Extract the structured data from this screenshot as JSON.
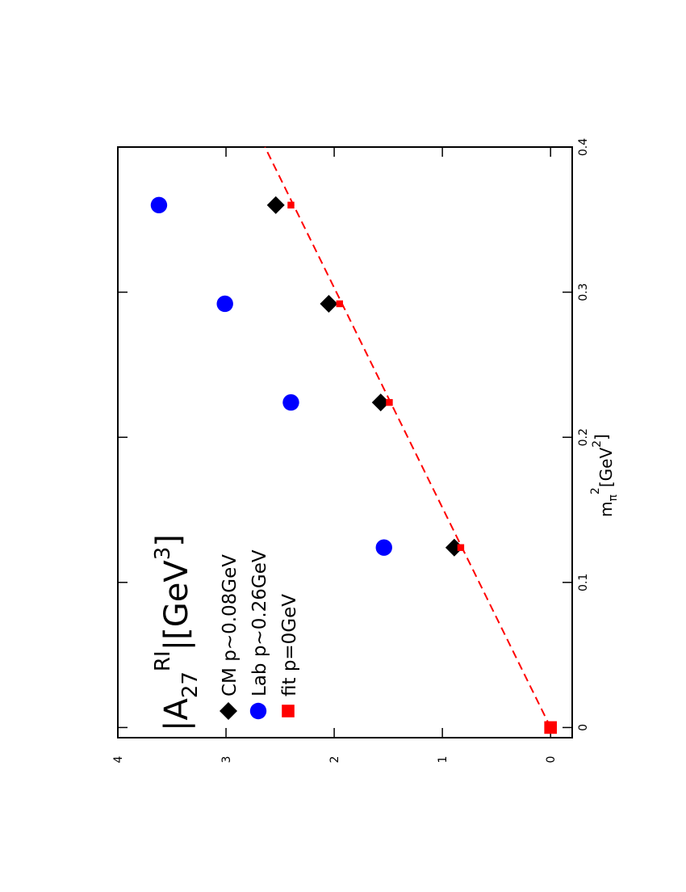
{
  "chart_data": {
    "type": "scatter",
    "title_parts": [
      "|A",
      "27",
      "RI",
      "|[GeV",
      "3",
      "]"
    ],
    "x_label_parts": [
      "m",
      "π",
      "2",
      "[GeV",
      "2",
      "]"
    ],
    "rotated": true,
    "xlim": [
      -0.007,
      0.4
    ],
    "xticks": [
      0,
      0.1,
      0.2,
      0.3,
      0.4
    ],
    "ylim": [
      -0.2,
      4
    ],
    "yticks": [
      0,
      1,
      2,
      3,
      4
    ],
    "series": [
      {
        "name": "CM p~0.08GeV",
        "color": "#000000",
        "marker": "diamond",
        "x": [
          0.124,
          0.224,
          0.292,
          0.36
        ],
        "values": [
          0.89,
          1.57,
          2.05,
          2.54
        ]
      },
      {
        "name": "Lab p~0.26GeV",
        "color": "#0000ff",
        "marker": "circle",
        "x": [
          0.124,
          0.224,
          0.292,
          0.36
        ],
        "values": [
          1.54,
          2.4,
          3.01,
          3.62
        ]
      },
      {
        "name": "fit p=0GeV",
        "color": "#ff0000",
        "marker": "square",
        "x": [
          0,
          0.124,
          0.224,
          0.292,
          0.36
        ],
        "values": [
          0,
          0.83,
          1.49,
          1.95,
          2.4
        ]
      }
    ],
    "fit_line": {
      "color": "#ff0000",
      "dashed": true,
      "x": [
        0,
        0.4
      ],
      "values": [
        0,
        2.64
      ]
    }
  }
}
